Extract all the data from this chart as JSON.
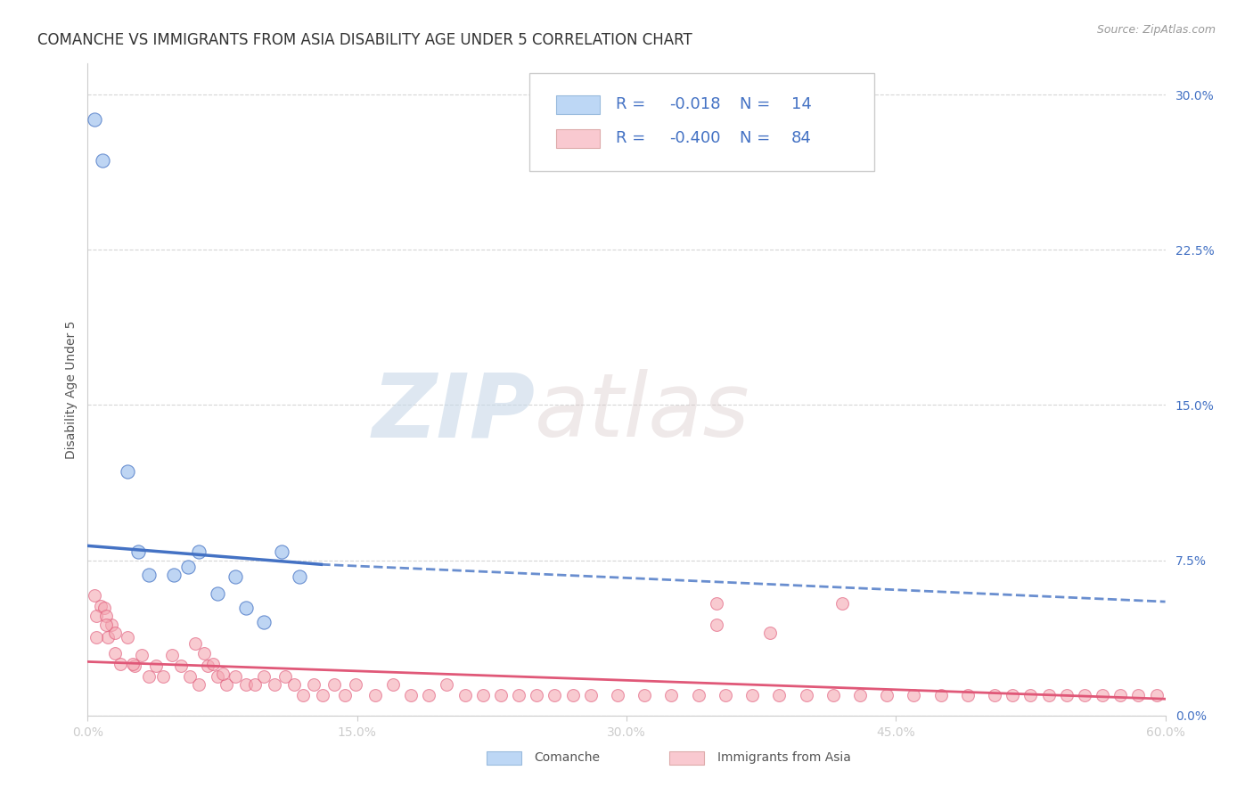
{
  "title": "COMANCHE VS IMMIGRANTS FROM ASIA DISABILITY AGE UNDER 5 CORRELATION CHART",
  "source": "Source: ZipAtlas.com",
  "ylabel": "Disability Age Under 5",
  "legend_label1": "Comanche",
  "legend_label2": "Immigrants from Asia",
  "R1": -0.018,
  "N1": 14,
  "R2": -0.4,
  "N2": 84,
  "xlim": [
    0.0,
    0.6
  ],
  "ylim": [
    0.0,
    0.315
  ],
  "xticks": [
    0.0,
    0.15,
    0.3,
    0.45,
    0.6
  ],
  "xtick_labels": [
    "0.0%",
    "15.0%",
    "30.0%",
    "45.0%",
    "60.0%"
  ],
  "yticks_right": [
    0.0,
    0.075,
    0.15,
    0.225,
    0.3
  ],
  "ytick_labels_right": [
    "0.0%",
    "7.5%",
    "15.0%",
    "22.5%",
    "30.0%"
  ],
  "color_blue": "#A8C8F0",
  "color_blue_line": "#4472C4",
  "color_pink": "#F4A7B2",
  "color_pink_line": "#E05878",
  "color_legend_blue_fill": "#BDD7F5",
  "color_legend_pink_fill": "#F9C9D0",
  "legend_text_color": "#4472C4",
  "background": "#FFFFFF",
  "watermark_zip": "ZIP",
  "watermark_atlas": "atlas",
  "grid_color": "#CCCCCC",
  "title_fontsize": 12,
  "axis_label_fontsize": 10,
  "tick_fontsize": 10,
  "legend_fontsize": 13,
  "comanche_x": [
    0.004,
    0.008,
    0.022,
    0.028,
    0.034,
    0.048,
    0.056,
    0.062,
    0.072,
    0.082,
    0.088,
    0.098,
    0.108,
    0.118
  ],
  "comanche_y": [
    0.288,
    0.268,
    0.118,
    0.079,
    0.068,
    0.068,
    0.072,
    0.079,
    0.059,
    0.067,
    0.052,
    0.045,
    0.079,
    0.067
  ],
  "asia_x": [
    0.004,
    0.007,
    0.009,
    0.011,
    0.013,
    0.015,
    0.018,
    0.022,
    0.026,
    0.03,
    0.034,
    0.038,
    0.042,
    0.047,
    0.052,
    0.057,
    0.062,
    0.067,
    0.072,
    0.077,
    0.082,
    0.088,
    0.093,
    0.098,
    0.104,
    0.11,
    0.115,
    0.12,
    0.126,
    0.131,
    0.137,
    0.143,
    0.149,
    0.16,
    0.17,
    0.18,
    0.19,
    0.2,
    0.21,
    0.22,
    0.23,
    0.24,
    0.25,
    0.26,
    0.27,
    0.28,
    0.295,
    0.31,
    0.325,
    0.34,
    0.355,
    0.37,
    0.385,
    0.4,
    0.415,
    0.43,
    0.445,
    0.46,
    0.475,
    0.49,
    0.505,
    0.515,
    0.525,
    0.535,
    0.545,
    0.555,
    0.565,
    0.575,
    0.585,
    0.595,
    0.35,
    0.38,
    0.42,
    0.005,
    0.01,
    0.015,
    0.025,
    0.35,
    0.06,
    0.065,
    0.07,
    0.075,
    0.005,
    0.01
  ],
  "asia_y": [
    0.058,
    0.053,
    0.052,
    0.038,
    0.044,
    0.03,
    0.025,
    0.038,
    0.024,
    0.029,
    0.019,
    0.024,
    0.019,
    0.029,
    0.024,
    0.019,
    0.015,
    0.024,
    0.019,
    0.015,
    0.019,
    0.015,
    0.015,
    0.019,
    0.015,
    0.019,
    0.015,
    0.01,
    0.015,
    0.01,
    0.015,
    0.01,
    0.015,
    0.01,
    0.015,
    0.01,
    0.01,
    0.015,
    0.01,
    0.01,
    0.01,
    0.01,
    0.01,
    0.01,
    0.01,
    0.01,
    0.01,
    0.01,
    0.01,
    0.01,
    0.01,
    0.01,
    0.01,
    0.01,
    0.01,
    0.01,
    0.01,
    0.01,
    0.01,
    0.01,
    0.01,
    0.01,
    0.01,
    0.01,
    0.01,
    0.01,
    0.01,
    0.01,
    0.01,
    0.01,
    0.054,
    0.04,
    0.054,
    0.048,
    0.048,
    0.04,
    0.025,
    0.044,
    0.035,
    0.03,
    0.025,
    0.02,
    0.038,
    0.044
  ],
  "trendline_blue_y_start": 0.082,
  "trendline_blue_y_end": 0.073,
  "trendline_blue_solid_end": 0.13,
  "trendline_blue_dashed_end": 0.6,
  "trendline_blue_y_dashed_end": 0.055,
  "trendline_pink_y_start": 0.026,
  "trendline_pink_y_end": 0.008
}
